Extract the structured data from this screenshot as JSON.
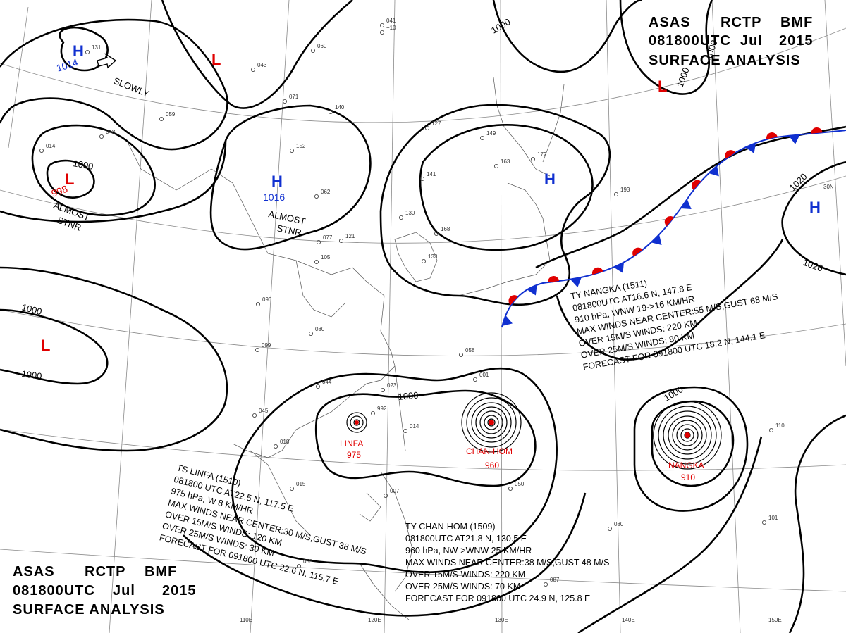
{
  "header_top": {
    "line1": [
      "ASAS",
      "RCTP",
      "BMF"
    ],
    "line2": [
      "081800UTC",
      "Jul",
      "2015"
    ],
    "line3": "SURFACE  ANALYSIS"
  },
  "header_bottom": {
    "line1": [
      "ASAS",
      "RCTP",
      "BMF"
    ],
    "line2": [
      "081800UTC",
      "Jul",
      "2015"
    ],
    "line3": "SURFACE  ANALYSIS"
  },
  "colors": {
    "low": "#e00000",
    "high": "#1030d0",
    "isobar": "#000000",
    "grid": "#8a8a8a"
  },
  "pressure_centers": [
    {
      "type": "H",
      "value": "1014",
      "motion": "SLOWLY"
    },
    {
      "type": "L",
      "value": ""
    },
    {
      "type": "L",
      "value": "998",
      "motion": "ALMOST STNR"
    },
    {
      "type": "H",
      "value": "1016",
      "motion": "ALMOST STNR"
    },
    {
      "type": "H",
      "value": ""
    },
    {
      "type": "L",
      "value": ""
    },
    {
      "type": "L",
      "value": ""
    },
    {
      "type": "H",
      "value": ""
    }
  ],
  "motion_labels": {
    "slowly": "SLOWLY",
    "stnr1a": "ALMOST",
    "stnr1b": "STNR",
    "stnr2a": "ALMOST",
    "stnr2b": "STNR"
  },
  "isobar_labels": [
    "1000",
    "1000",
    "1000",
    "1000",
    "1000",
    "1000",
    "1020",
    "1020",
    "1000",
    "1000"
  ],
  "lat_labels": [
    "30N"
  ],
  "lon_labels": [
    "110E",
    "120E",
    "130E",
    "140E",
    "150E"
  ],
  "storms": [
    {
      "name": "LINFA",
      "pressure": "975"
    },
    {
      "name": "CHAN-HOM",
      "pressure": "960"
    },
    {
      "name": "NANGKA",
      "pressure": "910"
    }
  ],
  "bulletins": {
    "nangka": [
      "TY  NANGKA  (1511)",
      "081800UTC  AT16.6 N, 147.8 E",
      "910 hPa, WNW  19->16 KM/HR",
      "MAX WINDS NEAR CENTER:55 M/S,GUST 68 M/S",
      "OVER 15M/S WINDS: 220 KM",
      "OVER 25M/S WINDS: 80 KM",
      "FORECAST FOR 091800 UTC 18.2 N, 144.1 E"
    ],
    "linfa": [
      "TS  LINFA  (1510)",
      "081800 UTC  AT22.5 N, 117.5 E",
      "975 hPa, W  8 KM/HR",
      "MAX WINDS NEAR CENTER:30 M/S,GUST 38 M/S",
      "OVER 15M/S WINDS: 120 KM",
      "OVER 25M/S WINDS: 30 KM",
      "FORECAST FOR 091800 UTC 22.6 N, 115.7 E"
    ],
    "chanhom": [
      "TY  CHAN-HOM  (1509)",
      "081800UTC  AT21.8 N, 130.5 E",
      "960 hPa, NW->WNW  25 KM/HR",
      "MAX WINDS NEAR CENTER:38 M/S,GUST 48 M/S",
      "OVER 15M/S WINDS: 220 KM",
      "OVER 25M/S WINDS: 70 KM",
      "FORECAST FOR 091800 UTC 24.9 N, 125.8 E"
    ]
  },
  "station_reports": [
    "041",
    "+10",
    "131",
    "060",
    "043",
    "071",
    "059",
    "048",
    "014",
    "152",
    "062",
    "077",
    "140",
    "127",
    "149",
    "163",
    "172",
    "193",
    "141",
    "130",
    "121",
    "105",
    "090",
    "080",
    "099",
    "168",
    "133",
    "058",
    "023",
    "001",
    "992",
    "014",
    "045",
    "018",
    "044",
    "015",
    "055",
    "101",
    "110",
    "087",
    "080",
    "050",
    "007"
  ]
}
